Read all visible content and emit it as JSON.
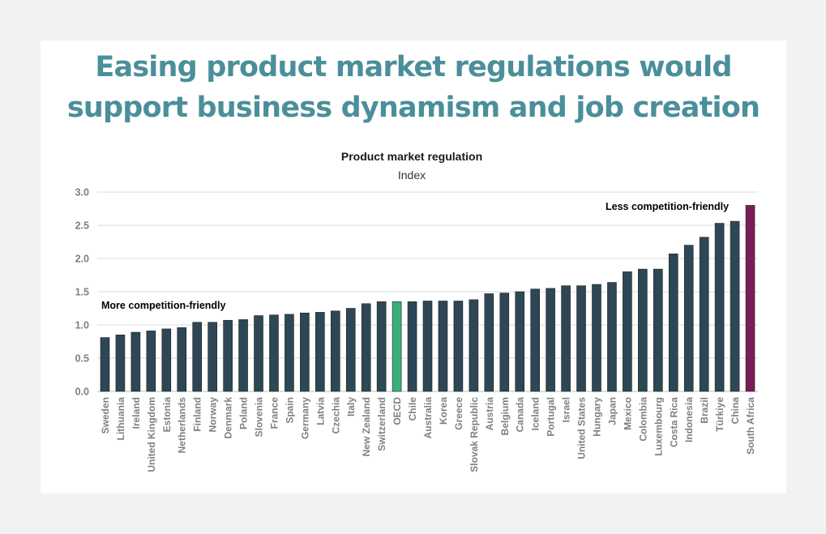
{
  "headline": "Easing product market regulations would support business dynamism and job creation",
  "chart_data": {
    "type": "bar",
    "title": "Product market regulation",
    "subtitle": "Index",
    "ylim": [
      0,
      3.0
    ],
    "yticks": [
      "0.0",
      "0.5",
      "1.0",
      "1.5",
      "2.0",
      "2.5",
      "3.0"
    ],
    "grid": true,
    "categories": [
      "Sweden",
      "Lithuania",
      "Ireland",
      "United Kingdom",
      "Estonia",
      "Netherlands",
      "Finland",
      "Norway",
      "Denmark",
      "Poland",
      "Slovenia",
      "France",
      "Spain",
      "Germany",
      "Latvia",
      "Czechia",
      "Italy",
      "New Zealand",
      "Switzerland",
      "OECD",
      "Chile",
      "Australia",
      "Korea",
      "Greece",
      "Slovak Republic",
      "Austria",
      "Belgium",
      "Canada",
      "Iceland",
      "Portugal",
      "Israel",
      "United States",
      "Hungary",
      "Japan",
      "Mexico",
      "Colombia",
      "Luxembourg",
      "Costa Rica",
      "Indonesia",
      "Brazil",
      "Türkiye",
      "China",
      "South Africa"
    ],
    "values": [
      0.81,
      0.85,
      0.89,
      0.91,
      0.94,
      0.96,
      1.04,
      1.04,
      1.07,
      1.08,
      1.14,
      1.15,
      1.16,
      1.18,
      1.19,
      1.21,
      1.25,
      1.32,
      1.35,
      1.35,
      1.35,
      1.36,
      1.36,
      1.36,
      1.38,
      1.47,
      1.48,
      1.5,
      1.54,
      1.55,
      1.59,
      1.59,
      1.61,
      1.64,
      1.8,
      1.84,
      1.84,
      2.07,
      2.2,
      2.32,
      2.53,
      2.56,
      2.8
    ],
    "annotations": {
      "left": "More competition-friendly",
      "right": "Less competition-friendly"
    },
    "colors": {
      "bar": "#2e4756",
      "oecd": "#3aaf7c",
      "south_africa": "#7b1d59",
      "axis_text": "#7f7f7f",
      "grid": "#d9d9d9",
      "headline": "#4a8f99"
    }
  }
}
